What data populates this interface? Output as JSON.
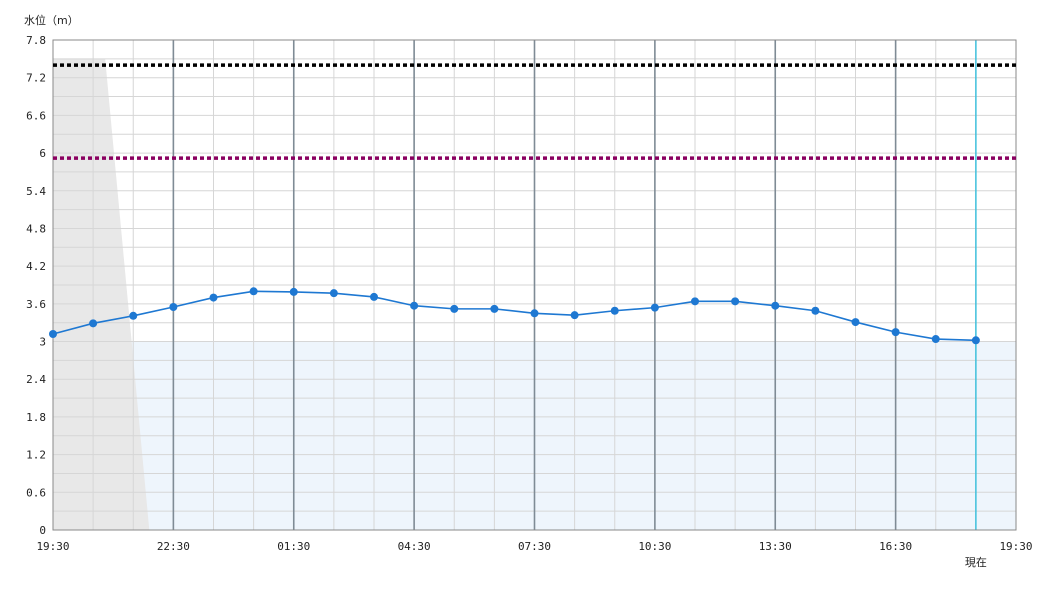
{
  "chart_data": {
    "type": "line",
    "ylabel": "水位（m）",
    "ylim": [
      0,
      7.8
    ],
    "y_ticks": [
      "0",
      "0.6",
      "1.2",
      "1.8",
      "2.4",
      "3",
      "3.6",
      "4.2",
      "4.8",
      "5.4",
      "6",
      "6.6",
      "7.2",
      "7.8"
    ],
    "x_tick_labels": [
      "19:30",
      "22:30",
      "01:30",
      "04:30",
      "07:30",
      "10:30",
      "13:30",
      "16:30",
      "19:30"
    ],
    "x_range_hours": [
      0,
      24
    ],
    "now_label": "現在",
    "now_hour": 23,
    "grid": true,
    "series": [
      {
        "color": "#1e78d2",
        "x_hours": [
          0,
          1,
          2,
          3,
          4,
          5,
          6,
          7,
          8,
          9,
          10,
          11,
          12,
          13,
          14,
          15,
          16,
          17,
          18,
          19,
          20,
          21,
          22,
          23
        ],
        "values": [
          3.12,
          3.29,
          3.41,
          3.55,
          3.7,
          3.8,
          3.79,
          3.77,
          3.71,
          3.57,
          3.52,
          3.52,
          3.45,
          3.42,
          3.49,
          3.54,
          3.64,
          3.64,
          3.57,
          3.49,
          3.31,
          3.15,
          3.04,
          3.02
        ]
      }
    ],
    "thresholds": [
      {
        "value": 7.4,
        "color": "#000000"
      },
      {
        "value": 5.92,
        "color": "#8a0060"
      }
    ],
    "normal_band_top": 3.0,
    "normal_band_color": "#eef5fc",
    "shaded_region": {
      "color": "#e8e8e8",
      "top": 7.5,
      "x_top_start": 0,
      "x_top_end": 1.3,
      "x_bottom_end": 2.4
    }
  }
}
